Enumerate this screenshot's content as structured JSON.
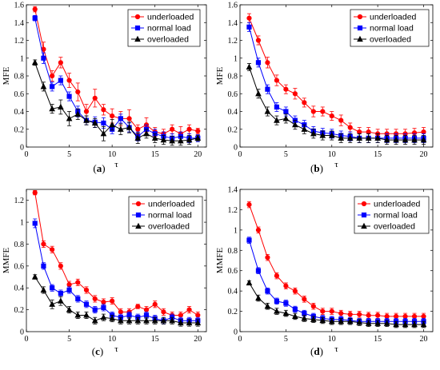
{
  "colors": {
    "underloaded": "#ff0000",
    "normal load": "#0000ff",
    "overloaded": "#000000"
  },
  "panels": [
    {
      "label": "(a)",
      "chart_data": {
        "type": "line",
        "xlabel": "τ",
        "ylabel": "MFE",
        "xlim": [
          0,
          21
        ],
        "ylim": [
          0,
          1.6
        ],
        "xticks": [
          0,
          5,
          10,
          15,
          20
        ],
        "yticks": [
          0,
          0.2,
          0.4,
          0.6,
          0.8,
          1,
          1.2,
          1.4,
          1.6
        ],
        "yticklabels": [
          "0",
          "0.2",
          "0.4",
          "0.6",
          "0.8",
          "1",
          "1.2",
          "1.4",
          "1.6"
        ],
        "legend": "top-right",
        "grid": false,
        "x": [
          1,
          2,
          3,
          4,
          5,
          6,
          7,
          8,
          9,
          10,
          11,
          12,
          13,
          14,
          15,
          16,
          17,
          18,
          19,
          20
        ],
        "series": [
          {
            "name": "underloaded",
            "marker": "circle",
            "values": [
              1.55,
              1.1,
              0.8,
              0.95,
              0.75,
              0.62,
              0.4,
              0.55,
              0.42,
              0.35,
              0.32,
              0.32,
              0.2,
              0.25,
              0.17,
              0.15,
              0.2,
              0.15,
              0.2,
              0.18
            ],
            "errors": [
              0.03,
              0.08,
              0.06,
              0.06,
              0.08,
              0.1,
              0.08,
              0.1,
              0.06,
              0.08,
              0.08,
              0.1,
              0.05,
              0.08,
              0.05,
              0.05,
              0.05,
              0.08,
              0.05,
              0.03
            ]
          },
          {
            "name": "normal load",
            "marker": "square",
            "values": [
              1.45,
              1.0,
              0.68,
              0.75,
              0.57,
              0.4,
              0.3,
              0.28,
              0.27,
              0.2,
              0.32,
              0.22,
              0.12,
              0.2,
              0.15,
              0.12,
              0.1,
              0.12,
              0.1,
              0.1
            ],
            "errors": [
              0.03,
              0.06,
              0.05,
              0.05,
              0.05,
              0.06,
              0.05,
              0.06,
              0.06,
              0.05,
              0.05,
              0.05,
              0.05,
              0.05,
              0.05,
              0.05,
              0.05,
              0.05,
              0.05,
              0.04
            ]
          },
          {
            "name": "overloaded",
            "marker": "triangle",
            "values": [
              0.95,
              0.68,
              0.43,
              0.45,
              0.32,
              0.37,
              0.3,
              0.27,
              0.15,
              0.25,
              0.2,
              0.22,
              0.1,
              0.15,
              0.1,
              0.08,
              0.07,
              0.07,
              0.08,
              0.1
            ],
            "errors": [
              0.03,
              0.05,
              0.05,
              0.08,
              0.08,
              0.06,
              0.05,
              0.05,
              0.08,
              0.06,
              0.06,
              0.06,
              0.06,
              0.05,
              0.05,
              0.05,
              0.05,
              0.05,
              0.05,
              0.03
            ]
          }
        ]
      }
    },
    {
      "label": "(b)",
      "chart_data": {
        "type": "line",
        "xlabel": "τ",
        "ylabel": "MFE",
        "xlim": [
          0,
          21
        ],
        "ylim": [
          0,
          1.6
        ],
        "xticks": [
          0,
          5,
          10,
          15,
          20
        ],
        "yticks": [
          0,
          0.2,
          0.4,
          0.6,
          0.8,
          1,
          1.2,
          1.4,
          1.6
        ],
        "yticklabels": [
          "0",
          "0.2",
          "0.4",
          "0.6",
          "0.8",
          "1",
          "1.2",
          "1.4",
          "1.6"
        ],
        "legend": "top-right",
        "grid": false,
        "x": [
          1,
          2,
          3,
          4,
          5,
          6,
          7,
          8,
          9,
          10,
          11,
          12,
          13,
          14,
          15,
          16,
          17,
          18,
          19,
          20
        ],
        "series": [
          {
            "name": "underloaded",
            "marker": "circle",
            "values": [
              1.45,
              1.2,
              0.95,
              0.75,
              0.65,
              0.6,
              0.5,
              0.4,
              0.4,
              0.35,
              0.3,
              0.22,
              0.17,
              0.17,
              0.15,
              0.15,
              0.15,
              0.15,
              0.16,
              0.17
            ],
            "errors": [
              0.05,
              0.05,
              0.06,
              0.06,
              0.05,
              0.06,
              0.05,
              0.06,
              0.05,
              0.05,
              0.06,
              0.05,
              0.05,
              0.05,
              0.05,
              0.05,
              0.05,
              0.05,
              0.05,
              0.05
            ]
          },
          {
            "name": "normal load",
            "marker": "square",
            "values": [
              1.35,
              0.95,
              0.65,
              0.45,
              0.4,
              0.3,
              0.25,
              0.18,
              0.16,
              0.15,
              0.13,
              0.12,
              0.1,
              0.1,
              0.1,
              0.1,
              0.1,
              0.1,
              0.1,
              0.1
            ],
            "errors": [
              0.05,
              0.05,
              0.05,
              0.05,
              0.05,
              0.05,
              0.05,
              0.05,
              0.05,
              0.05,
              0.05,
              0.05,
              0.05,
              0.05,
              0.05,
              0.05,
              0.05,
              0.05,
              0.05,
              0.05
            ]
          },
          {
            "name": "overloaded",
            "marker": "triangle",
            "values": [
              0.9,
              0.6,
              0.4,
              0.3,
              0.32,
              0.25,
              0.2,
              0.15,
              0.13,
              0.13,
              0.1,
              0.1,
              0.1,
              0.1,
              0.1,
              0.08,
              0.08,
              0.08,
              0.08,
              0.08
            ],
            "errors": [
              0.04,
              0.05,
              0.05,
              0.05,
              0.05,
              0.05,
              0.05,
              0.05,
              0.05,
              0.05,
              0.05,
              0.05,
              0.05,
              0.05,
              0.05,
              0.05,
              0.05,
              0.05,
              0.05,
              0.05
            ]
          }
        ]
      }
    },
    {
      "label": "(c)",
      "chart_data": {
        "type": "line",
        "xlabel": "τ",
        "ylabel": "MMFE",
        "xlim": [
          0,
          21
        ],
        "ylim": [
          0,
          1.3
        ],
        "xticks": [
          0,
          5,
          10,
          15,
          20
        ],
        "yticks": [
          0,
          0.2,
          0.4,
          0.6,
          0.8,
          1,
          1.2
        ],
        "yticklabels": [
          "0",
          "0.2",
          "0.4",
          "0.6",
          "0.8",
          "1",
          "1.2"
        ],
        "legend": "top-right",
        "grid": false,
        "x": [
          1,
          2,
          3,
          4,
          5,
          6,
          7,
          8,
          9,
          10,
          11,
          12,
          13,
          14,
          15,
          16,
          17,
          18,
          19,
          20
        ],
        "series": [
          {
            "name": "underloaded",
            "marker": "circle",
            "values": [
              1.27,
              0.8,
              0.75,
              0.6,
              0.43,
              0.45,
              0.38,
              0.3,
              0.27,
              0.28,
              0.18,
              0.18,
              0.23,
              0.2,
              0.25,
              0.18,
              0.15,
              0.15,
              0.2,
              0.15
            ],
            "errors": [
              0.02,
              0.03,
              0.03,
              0.03,
              0.03,
              0.03,
              0.03,
              0.03,
              0.03,
              0.03,
              0.03,
              0.03,
              0.02,
              0.03,
              0.03,
              0.03,
              0.03,
              0.03,
              0.03,
              0.03
            ]
          },
          {
            "name": "normal load",
            "marker": "square",
            "values": [
              0.99,
              0.6,
              0.4,
              0.35,
              0.38,
              0.3,
              0.25,
              0.2,
              0.22,
              0.15,
              0.13,
              0.15,
              0.13,
              0.15,
              0.12,
              0.1,
              0.13,
              0.1,
              0.1,
              0.1
            ],
            "errors": [
              0.04,
              0.03,
              0.03,
              0.03,
              0.03,
              0.03,
              0.03,
              0.03,
              0.03,
              0.03,
              0.03,
              0.03,
              0.03,
              0.03,
              0.03,
              0.03,
              0.03,
              0.03,
              0.03,
              0.03
            ]
          },
          {
            "name": "overloaded",
            "marker": "triangle",
            "values": [
              0.5,
              0.38,
              0.25,
              0.28,
              0.2,
              0.15,
              0.15,
              0.1,
              0.13,
              0.12,
              0.1,
              0.1,
              0.1,
              0.1,
              0.1,
              0.1,
              0.1,
              0.08,
              0.08,
              0.08
            ],
            "errors": [
              0.02,
              0.03,
              0.04,
              0.04,
              0.03,
              0.03,
              0.03,
              0.03,
              0.03,
              0.03,
              0.03,
              0.03,
              0.03,
              0.03,
              0.03,
              0.03,
              0.03,
              0.03,
              0.03,
              0.03
            ]
          }
        ]
      }
    },
    {
      "label": "(d)",
      "chart_data": {
        "type": "line",
        "xlabel": "τ",
        "ylabel": "MMFE",
        "xlim": [
          0,
          21
        ],
        "ylim": [
          0,
          1.4
        ],
        "xticks": [
          0,
          5,
          10,
          15,
          20
        ],
        "yticks": [
          0,
          0.2,
          0.4,
          0.6,
          0.8,
          1,
          1.2,
          1.4
        ],
        "yticklabels": [
          "0",
          "0.2",
          "0.4",
          "0.6",
          "0.8",
          "1",
          "1.2",
          "1.4"
        ],
        "legend": "top-right",
        "grid": false,
        "x": [
          1,
          2,
          3,
          4,
          5,
          6,
          7,
          8,
          9,
          10,
          11,
          12,
          13,
          14,
          15,
          16,
          17,
          18,
          19,
          20
        ],
        "series": [
          {
            "name": "underloaded",
            "marker": "circle",
            "values": [
              1.25,
              1.0,
              0.73,
              0.55,
              0.45,
              0.4,
              0.32,
              0.25,
              0.2,
              0.2,
              0.18,
              0.17,
              0.17,
              0.16,
              0.16,
              0.15,
              0.15,
              0.15,
              0.15,
              0.15
            ],
            "errors": [
              0.03,
              0.03,
              0.03,
              0.03,
              0.03,
              0.03,
              0.03,
              0.03,
              0.03,
              0.03,
              0.03,
              0.03,
              0.03,
              0.03,
              0.03,
              0.03,
              0.03,
              0.03,
              0.03,
              0.03
            ]
          },
          {
            "name": "normal load",
            "marker": "square",
            "values": [
              0.9,
              0.6,
              0.4,
              0.3,
              0.28,
              0.22,
              0.18,
              0.15,
              0.13,
              0.12,
              0.12,
              0.11,
              0.1,
              0.1,
              0.1,
              0.1,
              0.1,
              0.1,
              0.1,
              0.1
            ],
            "errors": [
              0.03,
              0.03,
              0.03,
              0.03,
              0.03,
              0.03,
              0.03,
              0.03,
              0.03,
              0.03,
              0.03,
              0.03,
              0.03,
              0.03,
              0.03,
              0.03,
              0.03,
              0.03,
              0.03,
              0.03
            ]
          },
          {
            "name": "overloaded",
            "marker": "triangle",
            "values": [
              0.48,
              0.33,
              0.25,
              0.2,
              0.18,
              0.15,
              0.13,
              0.12,
              0.11,
              0.1,
              0.1,
              0.1,
              0.09,
              0.08,
              0.08,
              0.08,
              0.07,
              0.07,
              0.07,
              0.07
            ],
            "errors": [
              0.02,
              0.03,
              0.03,
              0.03,
              0.03,
              0.03,
              0.03,
              0.03,
              0.03,
              0.03,
              0.03,
              0.03,
              0.03,
              0.03,
              0.03,
              0.03,
              0.03,
              0.03,
              0.03,
              0.03
            ]
          }
        ]
      }
    }
  ]
}
